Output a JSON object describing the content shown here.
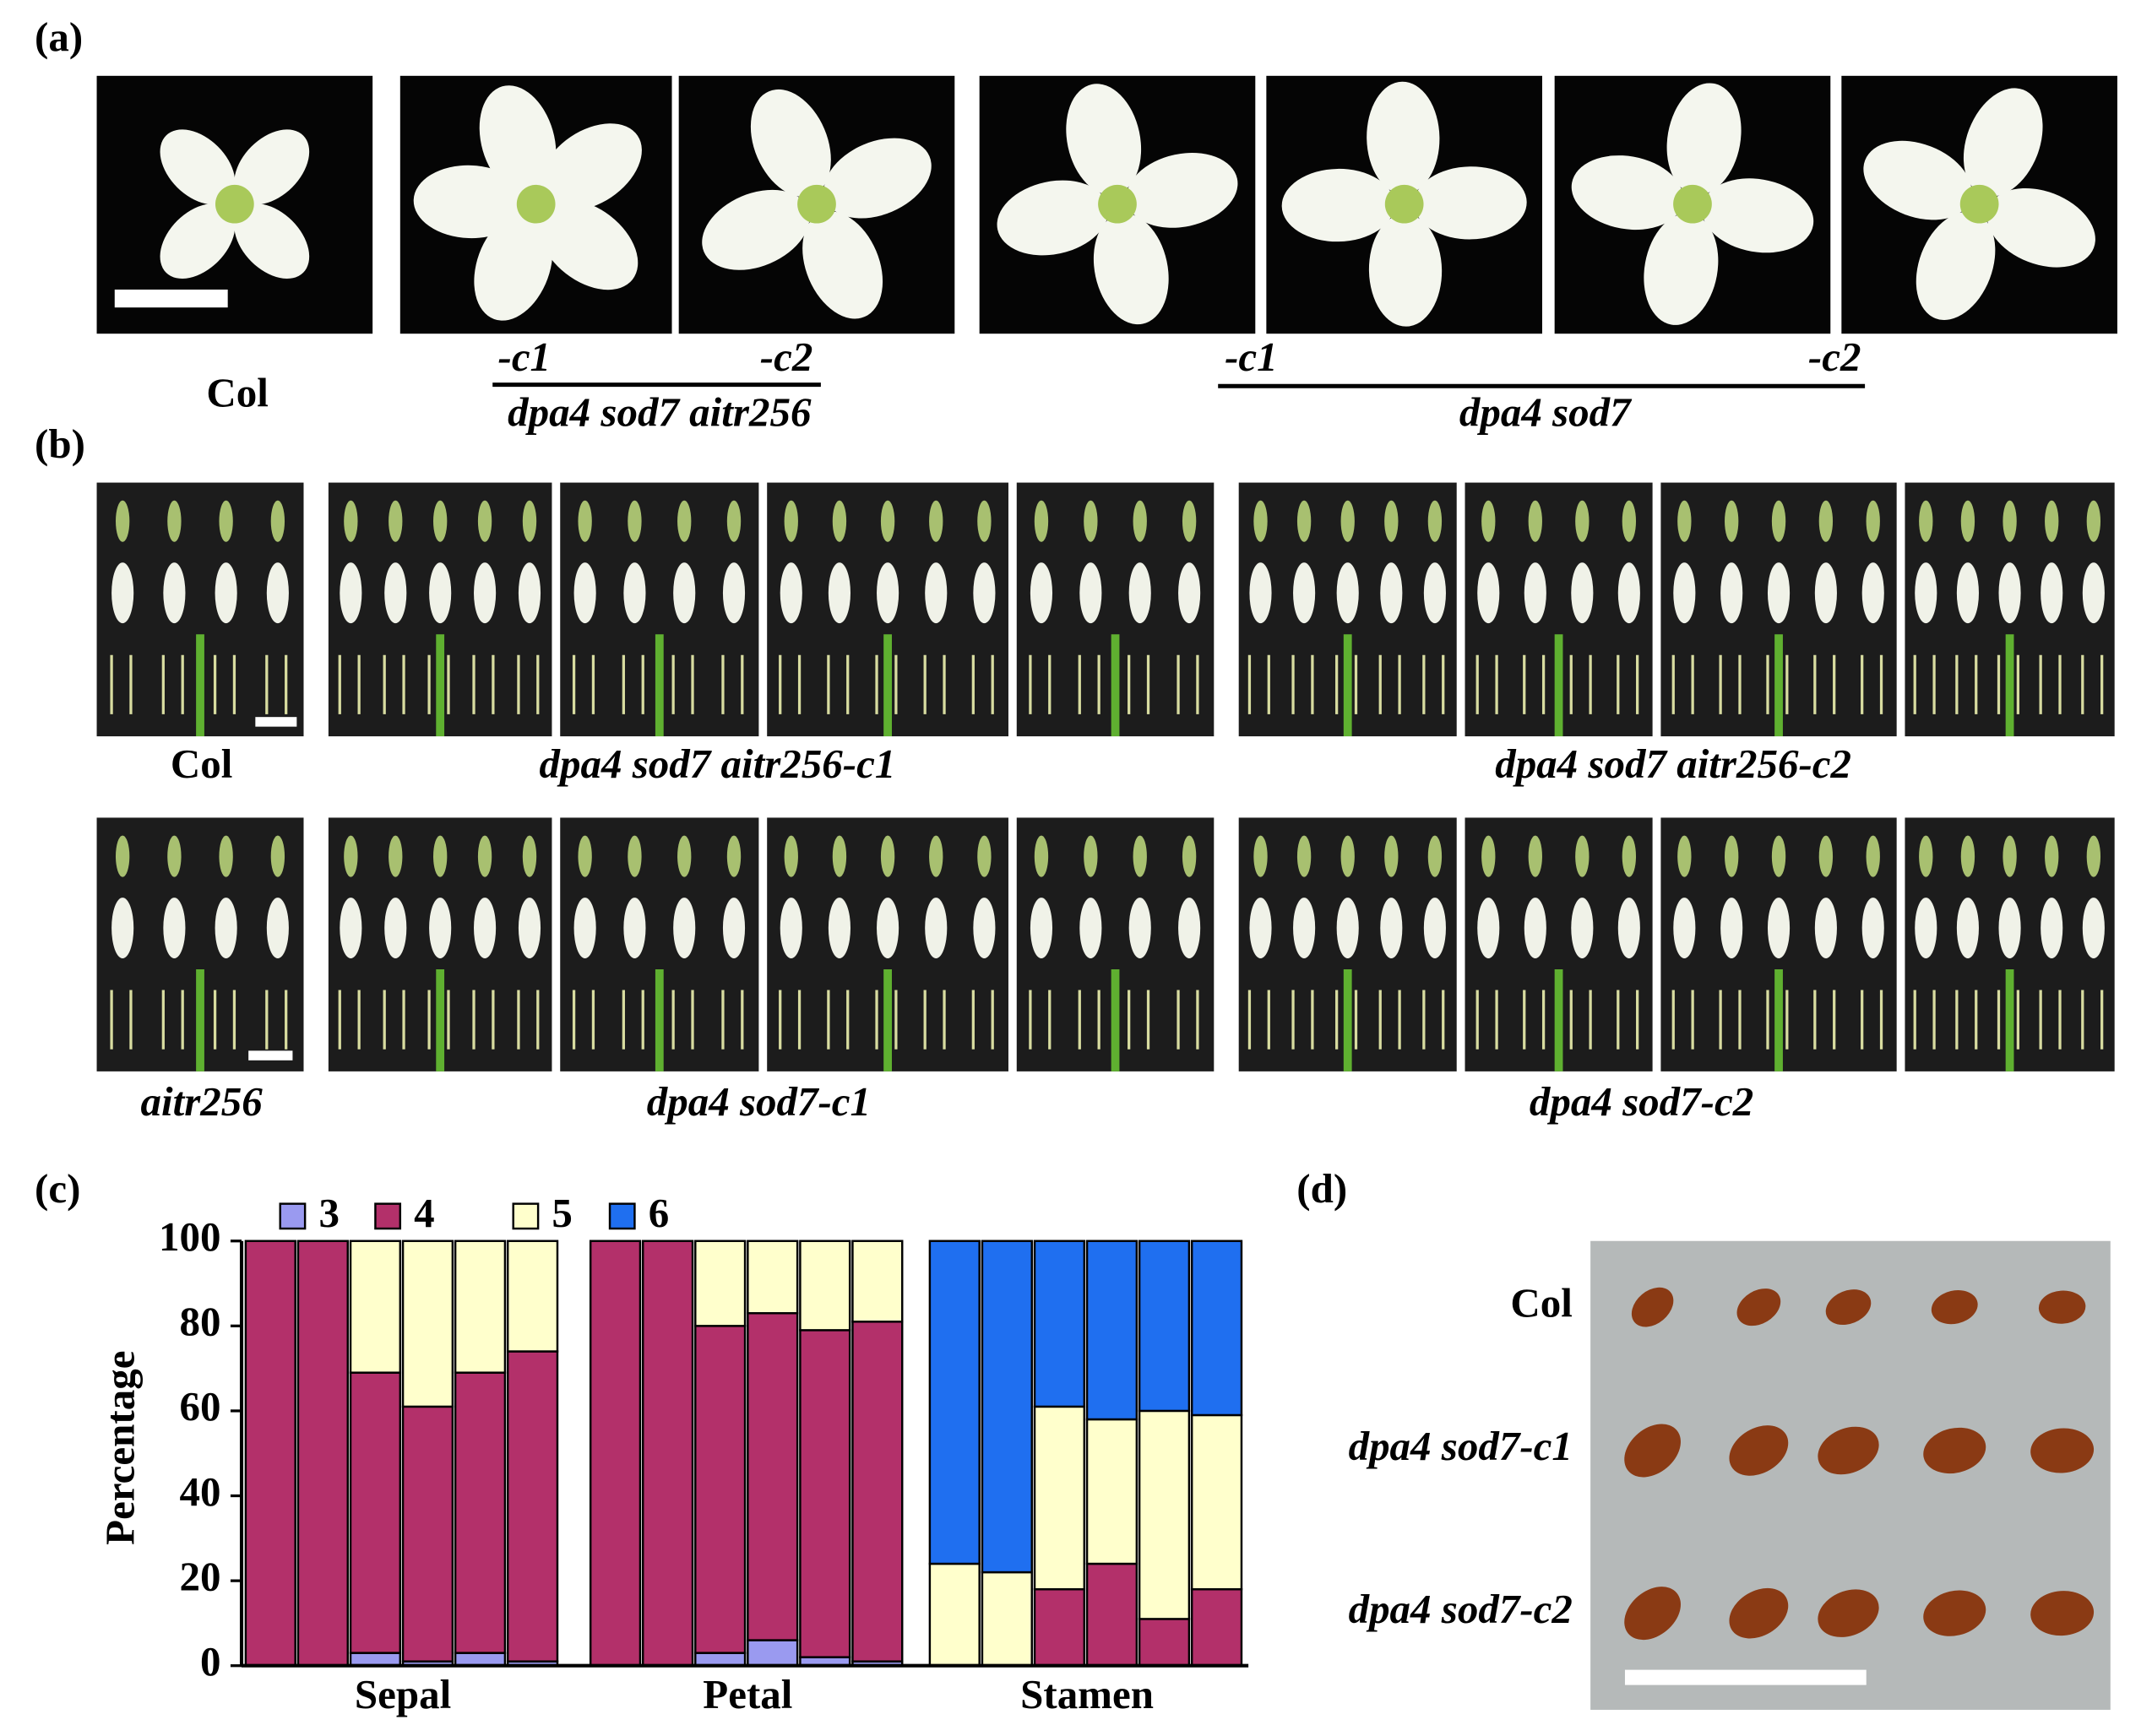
{
  "panel_a": {
    "label": "(a)",
    "col": "Col",
    "group1": {
      "c1": "-c1",
      "c2": "-c2",
      "name": "dpa4 sod7 aitr256"
    },
    "group2": {
      "c1": "-c1",
      "c2": "-c2",
      "name": "dpa4 sod7"
    }
  },
  "panel_b": {
    "label": "(b)",
    "row1": [
      "Col",
      "dpa4 sod7 aitr256-c1",
      "dpa4 sod7 aitr256-c2"
    ],
    "row2": [
      "aitr256",
      "dpa4 sod7-c1",
      "dpa4 sod7-c2"
    ]
  },
  "panel_c": {
    "label": "(c)"
  },
  "chart_data": {
    "type": "stacked_bar",
    "ylabel": "Percentage",
    "categories": [
      null,
      null,
      null,
      null,
      null,
      null,
      null,
      null,
      null,
      null,
      null,
      null,
      null,
      null,
      null,
      null,
      null,
      null
    ],
    "groups": [
      "Sepal",
      "Petal",
      "Stamen"
    ],
    "series": [
      {
        "name": "3",
        "color": "#9a9af0",
        "values": [
          0,
          0,
          3,
          1,
          3,
          1,
          0,
          0,
          3,
          6,
          2,
          1,
          0,
          0,
          0,
          0,
          0,
          0
        ]
      },
      {
        "name": "4",
        "color": "#b3306a",
        "values": [
          100,
          100,
          66,
          60,
          66,
          73,
          100,
          100,
          77,
          77,
          77,
          80,
          0,
          0,
          18,
          24,
          11,
          18
        ]
      },
      {
        "name": "5",
        "color": "#ffffcc",
        "values": [
          0,
          0,
          31,
          39,
          31,
          26,
          0,
          0,
          20,
          17,
          21,
          19,
          24,
          22,
          43,
          34,
          49,
          41
        ]
      },
      {
        "name": "6",
        "color": "#1f6ff0",
        "values": [
          0,
          0,
          0,
          0,
          0,
          0,
          0,
          0,
          0,
          0,
          0,
          0,
          76,
          78,
          39,
          42,
          40,
          41
        ]
      }
    ],
    "ylim": [
      0,
      100
    ],
    "yticks": [
      0,
      20,
      40,
      60,
      80,
      100
    ]
  },
  "panel_d": {
    "label": "(d)",
    "rows": [
      "Col",
      "dpa4 sod7-c1",
      "dpa4 sod7-c2"
    ]
  }
}
